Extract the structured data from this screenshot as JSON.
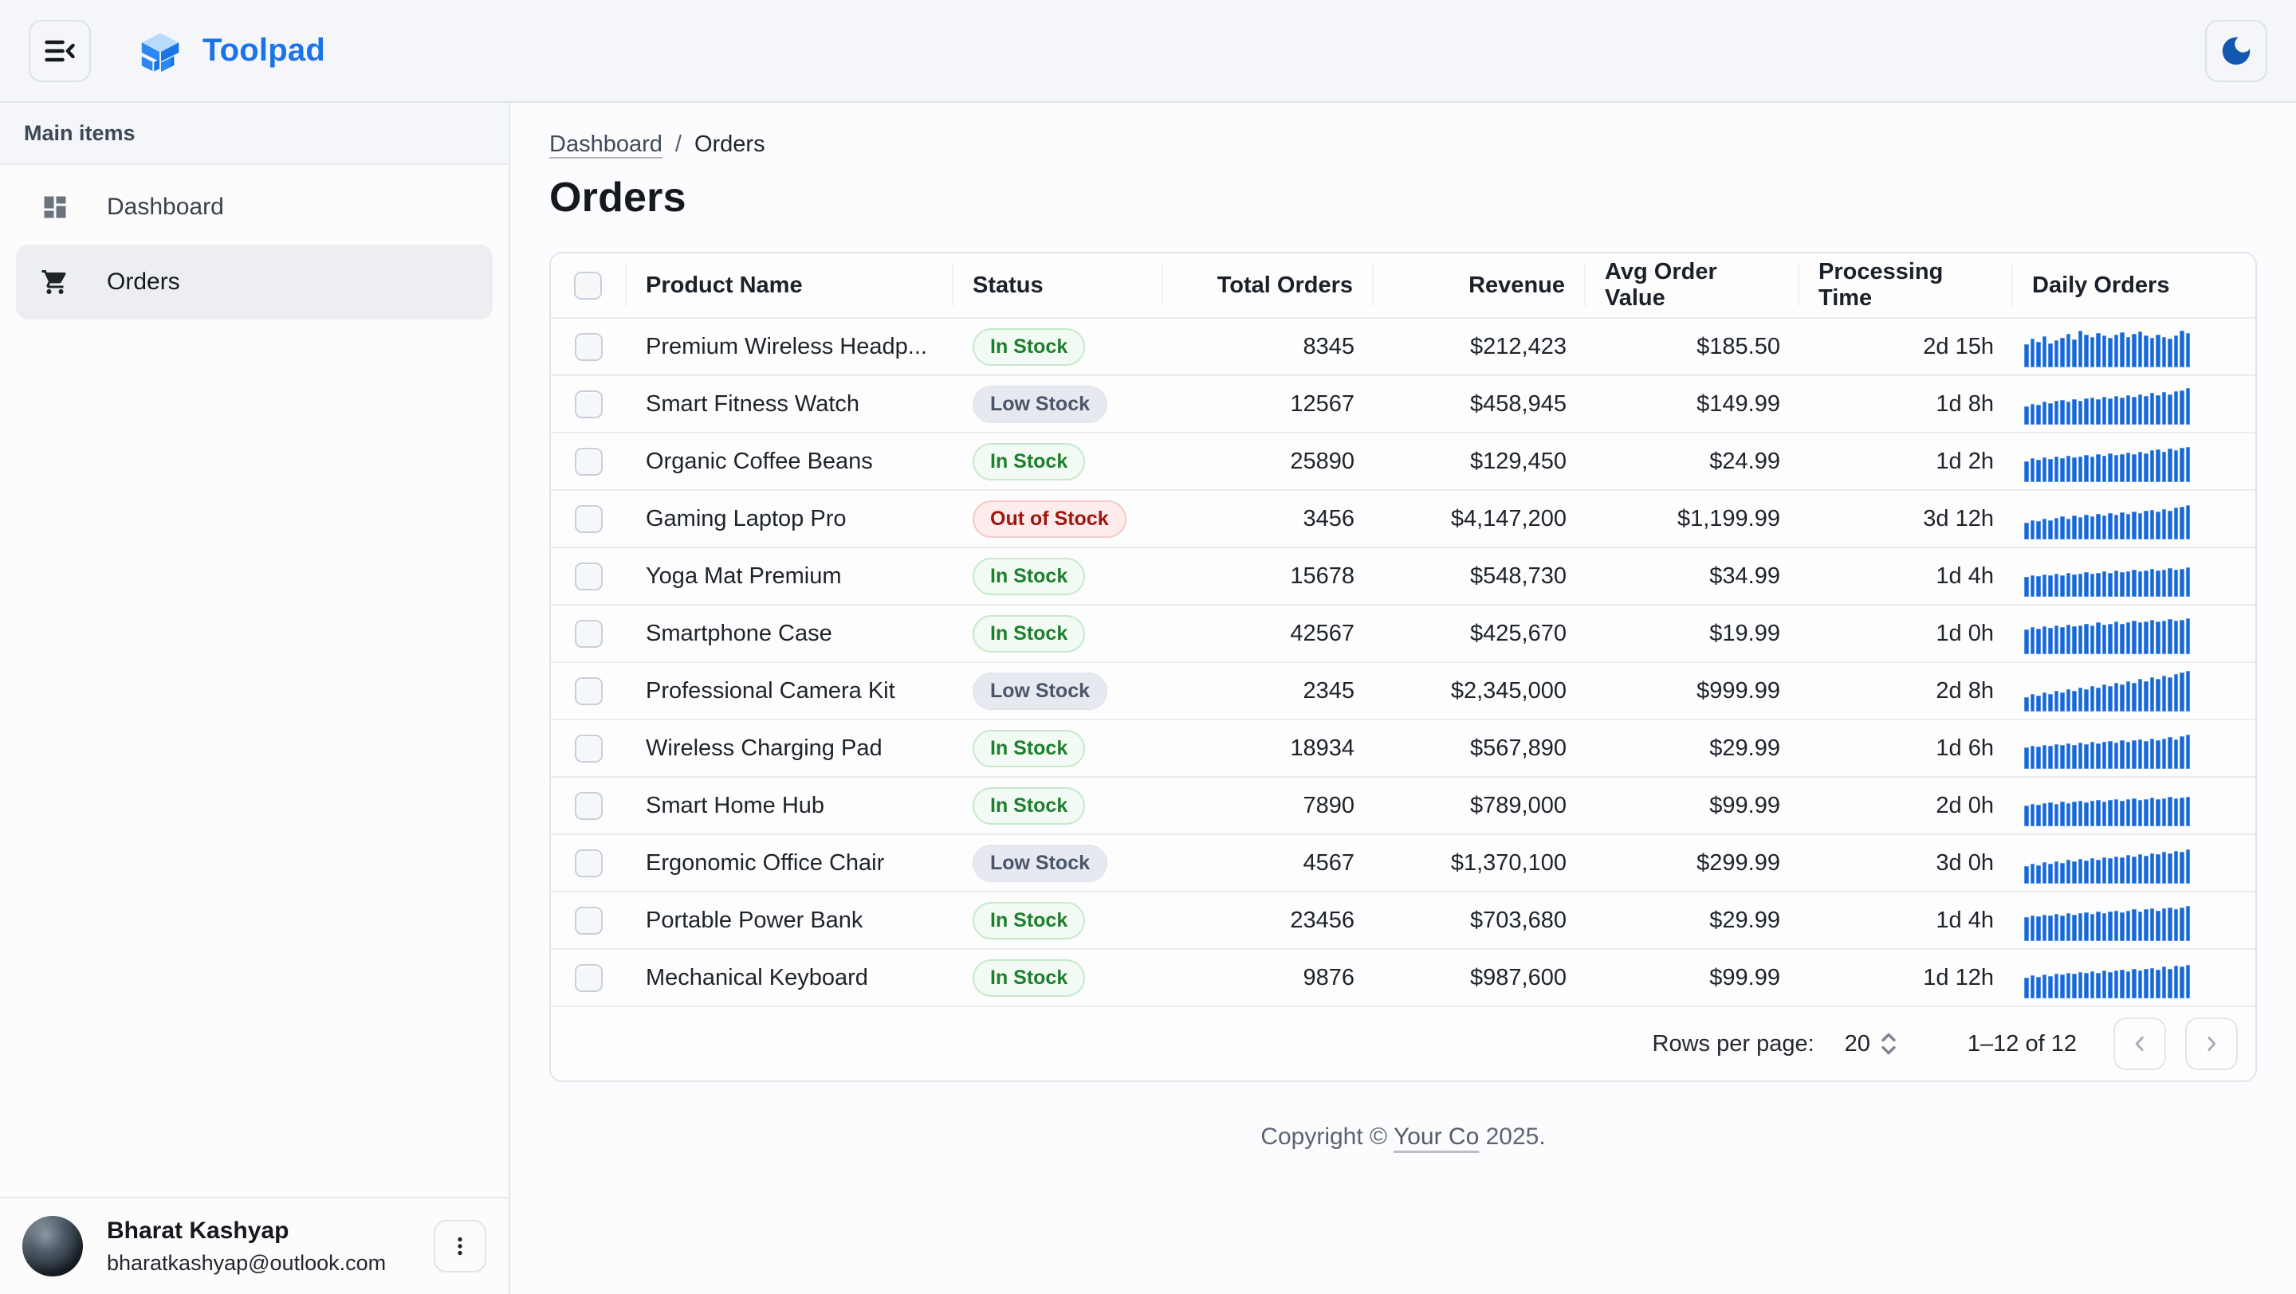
{
  "app": {
    "brand": "Toolpad",
    "brand_color": "#1a73e8"
  },
  "header": {
    "collapse_menu_icon": "menu-collapse-icon",
    "theme_toggle_icon": "dark-mode-moon-icon",
    "moon_color": "#1257b0"
  },
  "sidebar": {
    "section_label": "Main items",
    "items": [
      {
        "label": "Dashboard",
        "icon": "dashboard-grid-icon",
        "selected": false
      },
      {
        "label": "Orders",
        "icon": "shopping-cart-icon",
        "selected": true
      }
    ],
    "account": {
      "name": "Bharat Kashyap",
      "email": "bharatkashyap@outlook.com",
      "menu_icon": "vertical-dots-icon"
    }
  },
  "breadcrumb": {
    "parent": "Dashboard",
    "separator": "/",
    "current": "Orders"
  },
  "page": {
    "title": "Orders"
  },
  "table": {
    "columns": [
      {
        "label": "Product Name",
        "align": "left"
      },
      {
        "label": "Status",
        "align": "left"
      },
      {
        "label": "Total Orders",
        "align": "right"
      },
      {
        "label": "Revenue",
        "align": "right"
      },
      {
        "label": "Avg Order Value",
        "align": "right"
      },
      {
        "label": "Processing Time",
        "align": "right"
      },
      {
        "label": "Daily Orders",
        "align": "left"
      }
    ],
    "status_styles": {
      "in": {
        "label": "In Stock",
        "text": "#1e7e2e",
        "bg": "#f2fbf3",
        "border": "#c7e9ca"
      },
      "low": {
        "label": "Low Stock",
        "text": "#4a5568",
        "bg": "#e6e9f0",
        "border": "#e3e6ee"
      },
      "out": {
        "label": "Out of Stock",
        "text": "#a01510",
        "bg": "#fdeceb",
        "border": "#f6c9c5"
      }
    },
    "sparkline_color": "#1668d8",
    "rows": [
      {
        "product": "Premium Wireless Headp...",
        "status": "in",
        "total_orders": "8345",
        "revenue": "$212,423",
        "avg_order_value": "$185.50",
        "processing_time": "2d 15h",
        "daily_orders": [
          55,
          70,
          62,
          75,
          58,
          66,
          72,
          80,
          68,
          88,
          78,
          74,
          82,
          76,
          72,
          78,
          84,
          74,
          80,
          86,
          76,
          72,
          78,
          74,
          70,
          76,
          88,
          82
        ]
      },
      {
        "product": "Smart Fitness Watch",
        "status": "low",
        "total_orders": "12567",
        "revenue": "$458,945",
        "avg_order_value": "$149.99",
        "processing_time": "1d 8h",
        "daily_orders": [
          45,
          50,
          48,
          55,
          52,
          58,
          60,
          56,
          62,
          58,
          64,
          66,
          62,
          68,
          64,
          70,
          66,
          72,
          68,
          74,
          70,
          76,
          72,
          78,
          74,
          80,
          82,
          88
        ]
      },
      {
        "product": "Organic Coffee Beans",
        "status": "in",
        "total_orders": "25890",
        "revenue": "$129,450",
        "avg_order_value": "$24.99",
        "processing_time": "1d 2h",
        "daily_orders": [
          50,
          58,
          54,
          60,
          56,
          62,
          58,
          64,
          60,
          62,
          66,
          62,
          68,
          64,
          70,
          66,
          68,
          72,
          68,
          74,
          70,
          76,
          78,
          74,
          80,
          76,
          82,
          84
        ]
      },
      {
        "product": "Gaming Laptop Pro",
        "status": "out",
        "total_orders": "3456",
        "revenue": "$4,147,200",
        "avg_order_value": "$1,199.99",
        "processing_time": "3d 12h",
        "daily_orders": [
          40,
          46,
          44,
          50,
          46,
          52,
          56,
          50,
          58,
          54,
          60,
          56,
          62,
          58,
          64,
          60,
          66,
          62,
          68,
          64,
          70,
          72,
          68,
          74,
          70,
          76,
          78,
          82
        ]
      },
      {
        "product": "Yoga Mat Premium",
        "status": "in",
        "total_orders": "15678",
        "revenue": "$548,730",
        "avg_order_value": "$34.99",
        "processing_time": "1d 4h",
        "daily_orders": [
          48,
          52,
          50,
          54,
          52,
          56,
          52,
          58,
          54,
          56,
          60,
          56,
          58,
          62,
          58,
          64,
          60,
          62,
          66,
          62,
          64,
          68,
          64,
          66,
          70,
          66,
          68,
          72
        ]
      },
      {
        "product": "Smartphone Case",
        "status": "in",
        "total_orders": "42567",
        "revenue": "$425,670",
        "avg_order_value": "$19.99",
        "processing_time": "1d 0h",
        "daily_orders": [
          60,
          66,
          62,
          68,
          64,
          70,
          66,
          72,
          68,
          70,
          74,
          70,
          76,
          72,
          74,
          78,
          74,
          76,
          80,
          76,
          78,
          82,
          78,
          80,
          84,
          80,
          82,
          86
        ]
      },
      {
        "product": "Professional Camera Kit",
        "status": "low",
        "total_orders": "2345",
        "revenue": "$2,345,000",
        "avg_order_value": "$999.99",
        "processing_time": "2d 8h",
        "daily_orders": [
          35,
          42,
          38,
          46,
          42,
          50,
          46,
          54,
          50,
          58,
          54,
          62,
          58,
          66,
          62,
          70,
          66,
          74,
          70,
          78,
          74,
          82,
          78,
          86,
          82,
          90,
          94,
          98
        ]
      },
      {
        "product": "Wireless Charging Pad",
        "status": "in",
        "total_orders": "18934",
        "revenue": "$567,890",
        "avg_order_value": "$29.99",
        "processing_time": "1d 6h",
        "daily_orders": [
          52,
          56,
          54,
          58,
          56,
          60,
          58,
          62,
          58,
          64,
          60,
          66,
          62,
          66,
          68,
          64,
          70,
          66,
          70,
          72,
          68,
          74,
          70,
          74,
          76,
          72,
          78,
          82
        ]
      },
      {
        "product": "Smart Home Hub",
        "status": "in",
        "total_orders": "7890",
        "revenue": "$789,000",
        "avg_order_value": "$99.99",
        "processing_time": "2d 0h",
        "daily_orders": [
          50,
          54,
          52,
          56,
          58,
          54,
          60,
          56,
          60,
          62,
          58,
          62,
          64,
          60,
          64,
          66,
          62,
          66,
          68,
          64,
          66,
          70,
          66,
          68,
          72,
          68,
          70,
          72
        ]
      },
      {
        "product": "Ergonomic Office Chair",
        "status": "low",
        "total_orders": "4567",
        "revenue": "$1,370,100",
        "avg_order_value": "$299.99",
        "processing_time": "3d 0h",
        "daily_orders": [
          42,
          48,
          44,
          52,
          48,
          54,
          50,
          58,
          54,
          60,
          56,
          62,
          58,
          64,
          62,
          66,
          64,
          70,
          66,
          72,
          68,
          74,
          72,
          76,
          74,
          78,
          76,
          82
        ]
      },
      {
        "product": "Portable Power Bank",
        "status": "in",
        "total_orders": "23456",
        "revenue": "$703,680",
        "avg_order_value": "$29.99",
        "processing_time": "1d 4h",
        "daily_orders": [
          58,
          62,
          60,
          64,
          62,
          66,
          62,
          68,
          64,
          68,
          70,
          66,
          72,
          68,
          72,
          74,
          70,
          74,
          76,
          72,
          76,
          78,
          74,
          78,
          80,
          76,
          80,
          84
        ]
      },
      {
        "product": "Mechanical Keyboard",
        "status": "in",
        "total_orders": "9876",
        "revenue": "$987,600",
        "avg_order_value": "$99.99",
        "processing_time": "1d 12h",
        "daily_orders": [
          50,
          56,
          52,
          58,
          54,
          60,
          58,
          62,
          60,
          64,
          62,
          66,
          62,
          68,
          64,
          68,
          70,
          66,
          72,
          68,
          72,
          74,
          70,
          76,
          72,
          78,
          76,
          80
        ]
      }
    ]
  },
  "pagination": {
    "rows_per_page_label": "Rows per page:",
    "rows_per_page": "20",
    "range": "1–12 of 12"
  },
  "footer": {
    "copyright": "Copyright ©",
    "company": "Your Co",
    "year": "2025."
  }
}
